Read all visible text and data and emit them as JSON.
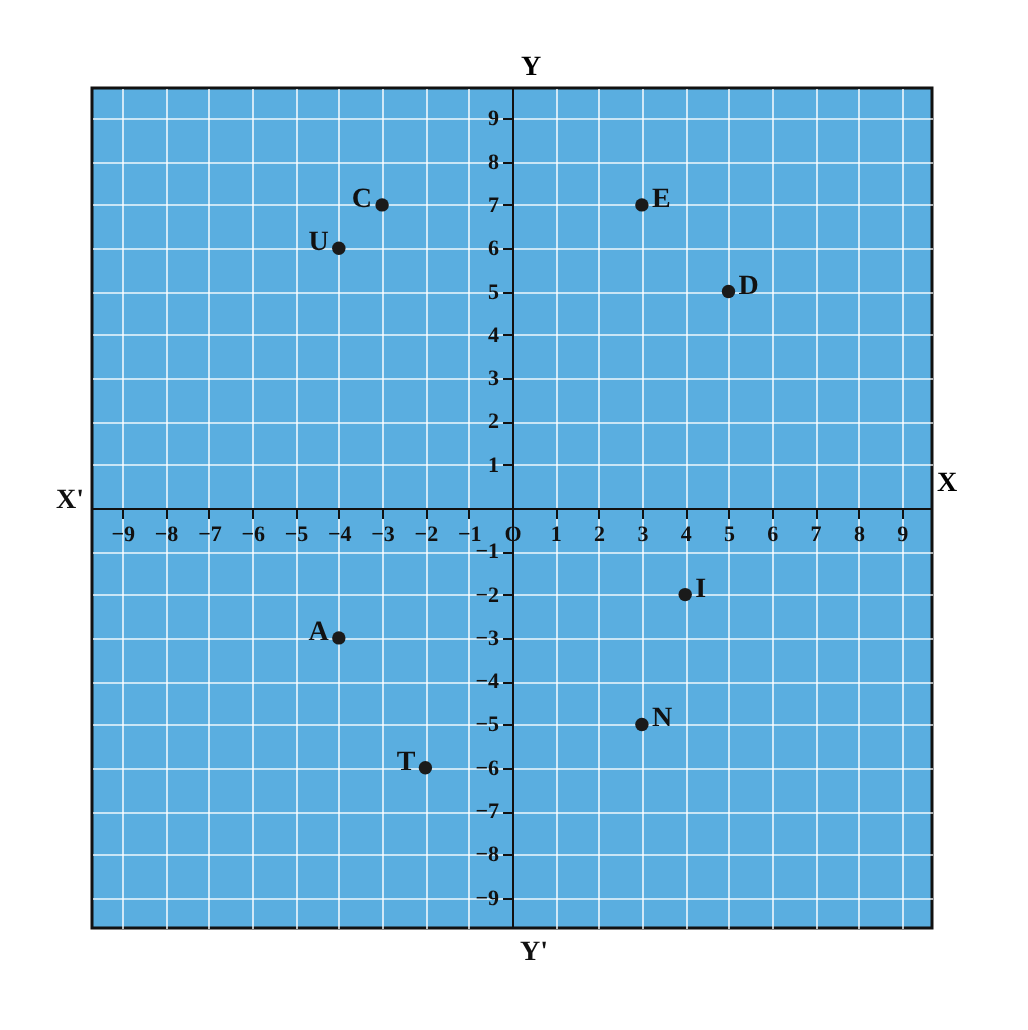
{
  "chart_data": {
    "type": "scatter",
    "xlabel": "X",
    "ylabel": "Y",
    "x": [
      -3,
      -4,
      3,
      5,
      4,
      -4,
      3,
      -2
    ],
    "values": [
      7,
      6,
      7,
      5,
      -2,
      -3,
      -5,
      -6
    ],
    "color": "#1a1a1a",
    "marker": "circle",
    "grid": true,
    "xlim": [
      -9.7,
      9.7
    ],
    "ylim": [
      -9.7,
      9.7
    ],
    "xticks": [
      -9,
      -8,
      -7,
      -6,
      -5,
      -4,
      -3,
      -2,
      -1,
      {
        "value": 0,
        "label": "O"
      },
      1,
      2,
      3,
      4,
      5,
      6,
      7,
      8,
      9
    ],
    "yticks": [
      -9,
      -8,
      -7,
      -6,
      -5,
      -4,
      -3,
      -2,
      -1,
      {
        "value": 0,
        "label": null
      },
      1,
      2,
      3,
      4,
      5,
      6,
      7,
      8,
      9
    ],
    "annotations": [
      {
        "text": "C",
        "x": -3,
        "y": 7
      },
      {
        "text": "U",
        "x": -4,
        "y": 6
      },
      {
        "text": "E",
        "x": 3,
        "y": 7
      },
      {
        "text": "D",
        "x": 5,
        "y": 5
      },
      {
        "text": "I",
        "x": 4,
        "y": -2
      },
      {
        "text": "A",
        "x": -4,
        "y": -3
      },
      {
        "text": "N",
        "x": 3,
        "y": -5
      },
      {
        "text": "T",
        "x": -2,
        "y": -6
      },
      "X'",
      "Y'"
    ]
  }
}
